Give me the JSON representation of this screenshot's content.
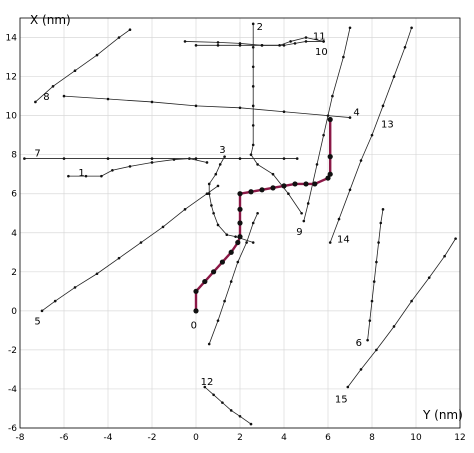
{
  "chart_data": {
    "type": "line",
    "xlabel": "Y (nm)",
    "ylabel": "X (nm)",
    "xlim": [
      -8,
      12
    ],
    "ylim": [
      -6,
      15
    ],
    "xticks": [
      -8,
      -6,
      -4,
      -2,
      0,
      2,
      4,
      6,
      8,
      10,
      12
    ],
    "yticks": [
      -6,
      -4,
      -2,
      0,
      2,
      4,
      6,
      8,
      10,
      12,
      14
    ],
    "grid": true,
    "highlight_color": "#8b1846",
    "highlighted": {
      "name": "0",
      "points": [
        [
          0,
          0
        ],
        [
          0,
          1
        ],
        [
          0.4,
          1.5
        ],
        [
          0.8,
          2
        ],
        [
          1.2,
          2.5
        ],
        [
          1.6,
          3
        ],
        [
          1.9,
          3.5
        ],
        [
          2,
          3.8
        ],
        [
          2,
          4.5
        ],
        [
          2,
          5.2
        ],
        [
          2,
          6
        ],
        [
          2.5,
          6.1
        ],
        [
          3,
          6.2
        ],
        [
          3.5,
          6.3
        ],
        [
          4,
          6.4
        ],
        [
          4.5,
          6.5
        ],
        [
          5,
          6.5
        ],
        [
          5.4,
          6.5
        ],
        [
          6,
          6.8
        ],
        [
          6.1,
          7
        ],
        [
          6.1,
          7.9
        ],
        [
          6.1,
          9.8
        ]
      ]
    },
    "series": [
      {
        "name": "1",
        "points": [
          [
            -5.8,
            6.9
          ],
          [
            -5,
            6.9
          ],
          [
            -4.3,
            6.9
          ],
          [
            -3.8,
            7.2
          ],
          [
            -3,
            7.4
          ],
          [
            -2,
            7.6
          ],
          [
            -1,
            7.75
          ],
          [
            -0.3,
            7.8
          ],
          [
            0.5,
            7.6
          ]
        ]
      },
      {
        "name": "2",
        "points": [
          [
            2.6,
            14.7
          ],
          [
            2.6,
            13.5
          ],
          [
            2.6,
            12.5
          ],
          [
            2.6,
            11.5
          ],
          [
            2.6,
            10.5
          ],
          [
            2.6,
            9.5
          ],
          [
            2.6,
            8.5
          ],
          [
            2.5,
            8
          ],
          [
            2.8,
            7.5
          ],
          [
            3.5,
            7
          ],
          [
            4.2,
            6
          ],
          [
            4.8,
            5
          ]
        ]
      },
      {
        "name": "3",
        "points": [
          [
            1.3,
            7.9
          ],
          [
            1.1,
            7.5
          ],
          [
            0.9,
            7
          ],
          [
            0.6,
            6.5
          ],
          [
            0.6,
            6
          ],
          [
            0.7,
            5.4
          ],
          [
            0.8,
            5
          ],
          [
            1,
            4.4
          ],
          [
            1.4,
            3.9
          ],
          [
            1.8,
            3.8
          ],
          [
            2.6,
            3.5
          ]
        ]
      },
      {
        "name": "4",
        "points": [
          [
            -6,
            11
          ],
          [
            -4,
            10.85
          ],
          [
            -2,
            10.7
          ],
          [
            0,
            10.5
          ],
          [
            2,
            10.4
          ],
          [
            4,
            10.2
          ],
          [
            6,
            10
          ],
          [
            7,
            9.9
          ]
        ]
      },
      {
        "name": "5",
        "points": [
          [
            -7,
            0
          ],
          [
            -6.4,
            0.5
          ],
          [
            -5.5,
            1.2
          ],
          [
            -4.5,
            1.9
          ],
          [
            -3.5,
            2.7
          ],
          [
            -2.5,
            3.5
          ],
          [
            -1.5,
            4.3
          ],
          [
            -0.5,
            5.2
          ],
          [
            0.5,
            6
          ],
          [
            1,
            6.4
          ]
        ]
      },
      {
        "name": "6",
        "points": [
          [
            7.8,
            -1.5
          ],
          [
            7.9,
            -0.5
          ],
          [
            8,
            0.5
          ],
          [
            8.1,
            1.5
          ],
          [
            8.2,
            2.5
          ],
          [
            8.3,
            3.5
          ],
          [
            8.4,
            4.5
          ],
          [
            8.5,
            5.2
          ]
        ]
      },
      {
        "name": "7",
        "points": [
          [
            -7.8,
            7.8
          ],
          [
            -6,
            7.8
          ],
          [
            -4,
            7.8
          ],
          [
            -2,
            7.8
          ],
          [
            0,
            7.8
          ],
          [
            2,
            7.8
          ],
          [
            4,
            7.8
          ],
          [
            4.6,
            7.8
          ]
        ]
      },
      {
        "name": "8",
        "points": [
          [
            -7.3,
            10.7
          ],
          [
            -6.5,
            11.5
          ],
          [
            -5.5,
            12.3
          ],
          [
            -4.5,
            13.1
          ],
          [
            -3.5,
            14
          ],
          [
            -3,
            14.4
          ]
        ]
      },
      {
        "name": "9",
        "points": [
          [
            4.9,
            4.6
          ],
          [
            5.1,
            5.5
          ],
          [
            5.3,
            6.5
          ],
          [
            5.5,
            7.5
          ],
          [
            5.8,
            9
          ],
          [
            6.2,
            11
          ],
          [
            6.7,
            13
          ],
          [
            7,
            14.5
          ]
        ]
      },
      {
        "name": "10",
        "points": [
          [
            0,
            13.6
          ],
          [
            1,
            13.6
          ],
          [
            2,
            13.6
          ],
          [
            3,
            13.6
          ],
          [
            4,
            13.6
          ],
          [
            4.5,
            13.7
          ],
          [
            5,
            13.8
          ],
          [
            5.8,
            13.8
          ]
        ]
      },
      {
        "name": "11",
        "points": [
          [
            -0.5,
            13.8
          ],
          [
            1,
            13.75
          ],
          [
            2,
            13.7
          ],
          [
            3,
            13.6
          ],
          [
            3.8,
            13.6
          ],
          [
            4.3,
            13.8
          ],
          [
            5,
            14
          ],
          [
            5.8,
            13.8
          ]
        ]
      },
      {
        "name": "12",
        "points": [
          [
            0.4,
            -3.9
          ],
          [
            0.8,
            -4.3
          ],
          [
            1.2,
            -4.7
          ],
          [
            1.6,
            -5.1
          ],
          [
            2,
            -5.4
          ],
          [
            2.5,
            -5.8
          ]
        ]
      },
      {
        "name": "13",
        "points": [
          [
            6.1,
            3.5
          ],
          [
            6.5,
            4.7
          ],
          [
            7,
            6.2
          ],
          [
            7.5,
            7.7
          ],
          [
            8,
            9
          ],
          [
            8.5,
            10.5
          ],
          [
            9,
            12
          ],
          [
            9.5,
            13.5
          ],
          [
            9.8,
            14.5
          ]
        ]
      },
      {
        "name": "14",
        "points": [
          [
            0.6,
            -1.7
          ],
          [
            1,
            -0.5
          ],
          [
            1.3,
            0.5
          ],
          [
            1.6,
            1.5
          ],
          [
            1.9,
            2.5
          ],
          [
            2.3,
            3.5
          ],
          [
            2.6,
            4.5
          ],
          [
            2.8,
            5
          ]
        ]
      },
      {
        "name": "15",
        "points": [
          [
            6.9,
            -3.9
          ],
          [
            7.5,
            -3
          ],
          [
            8.2,
            -2
          ],
          [
            9,
            -0.8
          ],
          [
            9.8,
            0.5
          ],
          [
            10.6,
            1.7
          ],
          [
            11.3,
            2.8
          ],
          [
            11.8,
            3.7
          ]
        ]
      }
    ],
    "labels": [
      {
        "text": "0",
        "x": -0.1,
        "y": -0.7
      },
      {
        "text": "1",
        "x": -5.2,
        "y": 7.1
      },
      {
        "text": "2",
        "x": 2.9,
        "y": 14.6
      },
      {
        "text": "3",
        "x": 1.2,
        "y": 8.3
      },
      {
        "text": "4",
        "x": 7.3,
        "y": 10.2
      },
      {
        "text": "5",
        "x": -7.2,
        "y": -0.5
      },
      {
        "text": "6",
        "x": 7.4,
        "y": -1.6
      },
      {
        "text": "7",
        "x": -7.2,
        "y": 8.1
      },
      {
        "text": "8",
        "x": -6.8,
        "y": 11
      },
      {
        "text": "9",
        "x": 4.7,
        "y": 4.1
      },
      {
        "text": "10",
        "x": 5.7,
        "y": 13.3
      },
      {
        "text": "11",
        "x": 5.6,
        "y": 14.1
      },
      {
        "text": "12",
        "x": 0.5,
        "y": -3.6
      },
      {
        "text": "13",
        "x": 8.7,
        "y": 9.6
      },
      {
        "text": "14",
        "x": 6.7,
        "y": 3.7
      },
      {
        "text": "15",
        "x": 6.6,
        "y": -4.5
      }
    ]
  }
}
